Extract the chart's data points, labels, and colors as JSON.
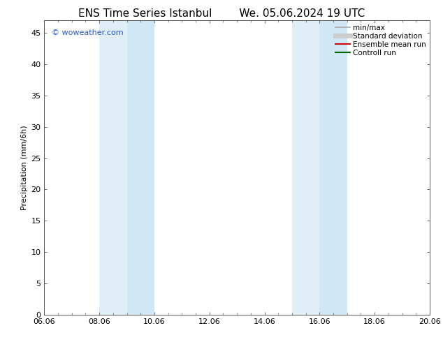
{
  "title_left": "ENS Time Series Istanbul",
  "title_right": "We. 05.06.2024 19 UTC",
  "ylabel": "Precipitation (mm/6h)",
  "xlim": [
    0,
    14
  ],
  "ylim": [
    0,
    47
  ],
  "yticks": [
    0,
    5,
    10,
    15,
    20,
    25,
    30,
    35,
    40,
    45
  ],
  "xtick_positions": [
    0,
    2,
    4,
    6,
    8,
    10,
    12,
    14
  ],
  "xtick_labels": [
    "06.06",
    "08.06",
    "10.06",
    "12.06",
    "14.06",
    "16.06",
    "18.06",
    "20.06"
  ],
  "shaded_regions": [
    {
      "x_start": 2.0,
      "x_end": 3.0,
      "color": "#e0eef8"
    },
    {
      "x_start": 3.0,
      "x_end": 4.0,
      "color": "#d0e8f5"
    },
    {
      "x_start": 9.0,
      "x_end": 10.0,
      "color": "#e0eef8"
    },
    {
      "x_start": 10.0,
      "x_end": 11.0,
      "color": "#d0e8f5"
    }
  ],
  "legend_items": [
    {
      "label": "min/max",
      "color": "#aaaaaa",
      "lw": 1.2
    },
    {
      "label": "Standard deviation",
      "color": "#cccccc",
      "lw": 5
    },
    {
      "label": "Ensemble mean run",
      "color": "#cc0000",
      "lw": 1.5
    },
    {
      "label": "Controll run",
      "color": "#006600",
      "lw": 1.5
    }
  ],
  "watermark": "© woweather.com",
  "watermark_color": "#2255cc",
  "background_color": "#ffffff",
  "plot_bg_color": "#ffffff",
  "title_fontsize": 11,
  "axis_fontsize": 8,
  "ylabel_fontsize": 8,
  "legend_fontsize": 7.5
}
